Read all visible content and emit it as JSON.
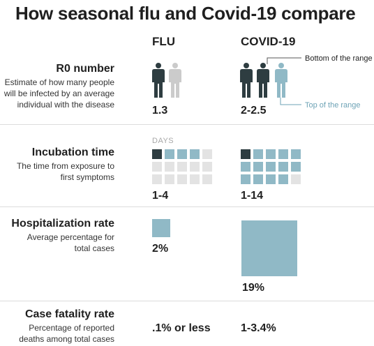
{
  "title": "How seasonal flu and Covid-19 compare",
  "columns": {
    "flu": "FLU",
    "covid": "COVID-19"
  },
  "colors": {
    "dark": "#2e3d41",
    "blue": "#90b9c6",
    "light_gray": "#e3e3e3",
    "mid_gray": "#cbcbcb",
    "annotation_blue": "#6ea3b6"
  },
  "icon_names": [
    "person-icon"
  ],
  "r0": {
    "title": "R0 number",
    "description": "Estimate of how many people will be infected by an average individual with the disease",
    "flu_value": "1.3",
    "covid_value": "2-2.5",
    "bottom_label": "Bottom of the range",
    "top_label": "Top of the range"
  },
  "incubation": {
    "title": "Incubation time",
    "description": "The time from exposure to first symptoms",
    "days_label": "DAYS",
    "flu_value": "1-4",
    "covid_value": "1-14"
  },
  "hospitalization": {
    "title": "Hospitalization rate",
    "description": "Average percentage for total cases",
    "flu_value": "2%",
    "covid_value": "19%"
  },
  "fatality": {
    "title": "Case fatality rate",
    "description": "Percentage of reported deaths among total cases",
    "flu_value": ".1% or less",
    "covid_value": "1-3.4%"
  },
  "chart_data": {
    "type": "table",
    "columns": [
      "FLU",
      "COVID-19"
    ],
    "rows": [
      {
        "metric": "R0 number",
        "flu": "1.3",
        "covid": "2-2.5",
        "flu_range": [
          1,
          1.3
        ],
        "covid_range": [
          2,
          2.5
        ]
      },
      {
        "metric": "Incubation time",
        "unit": "DAYS",
        "flu": "1-4",
        "covid": "1-14",
        "flu_range": [
          1,
          4
        ],
        "covid_range": [
          1,
          14
        ],
        "grid_cells": 15
      },
      {
        "metric": "Hospitalization rate",
        "flu": "2%",
        "covid": "19%",
        "flu_percent": 2,
        "covid_percent": 19
      },
      {
        "metric": "Case fatality rate",
        "flu": ".1% or less",
        "covid": "1-3.4%"
      }
    ]
  }
}
